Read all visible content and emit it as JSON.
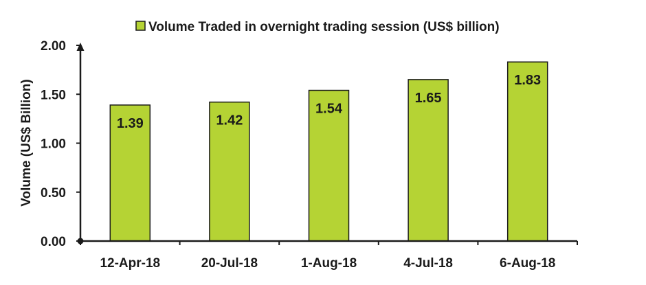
{
  "chart_data": {
    "type": "bar",
    "categories": [
      "12-Apr-18",
      "20-Jul-18",
      "1-Aug-18",
      "4-Jul-18",
      "6-Aug-18"
    ],
    "series": [
      {
        "name": "Volume Traded in overnight trading session (US$ billion)",
        "values": [
          1.39,
          1.42,
          1.54,
          1.65,
          1.83
        ],
        "labels": [
          "1.39",
          "1.42",
          "1.54",
          "1.65",
          "1.83"
        ]
      }
    ],
    "xlabel": "",
    "ylabel": "Volume (US$ Billion)",
    "ylim": [
      0,
      2.0
    ],
    "yticks": [
      "0.00",
      "0.50",
      "1.00",
      "1.50",
      "2.00"
    ],
    "ytick_values": [
      0,
      0.5,
      1.0,
      1.5,
      2.0
    ],
    "grid": false,
    "legend_position": "top-center",
    "colors": {
      "bar_fill": "#b5d334",
      "bar_stroke": "#1a1a1a",
      "axis": "#1a1a1a"
    }
  }
}
